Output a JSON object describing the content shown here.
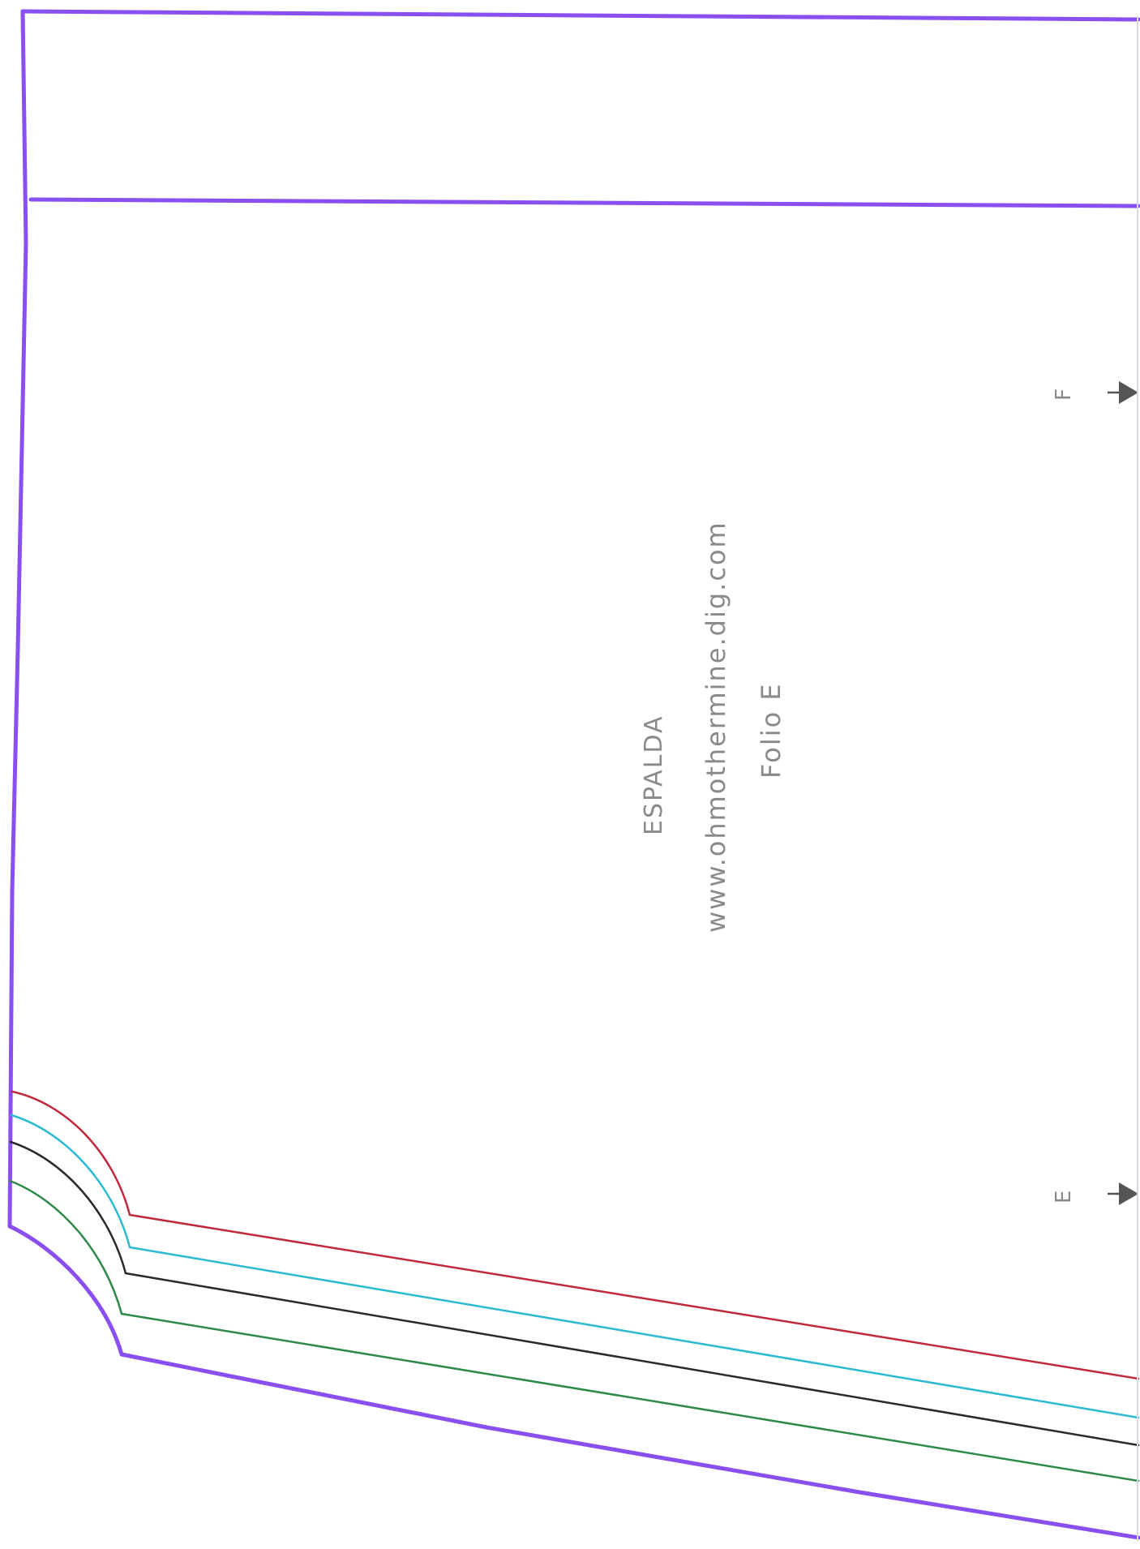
{
  "pattern": {
    "piece_name": "ESPALDA",
    "website": "www.ohmothermine.dig.com",
    "page_label": "Folio E",
    "marks": {
      "upper": "F",
      "lower": "E"
    }
  },
  "colors": {
    "outline": "#8a4ff0",
    "size_red": "#c0283c",
    "size_cyan": "#2bbad0",
    "size_black": "#2a2a2a",
    "size_green": "#2f8a4a",
    "arrow": "#555555",
    "text": "#8a8a8a"
  }
}
